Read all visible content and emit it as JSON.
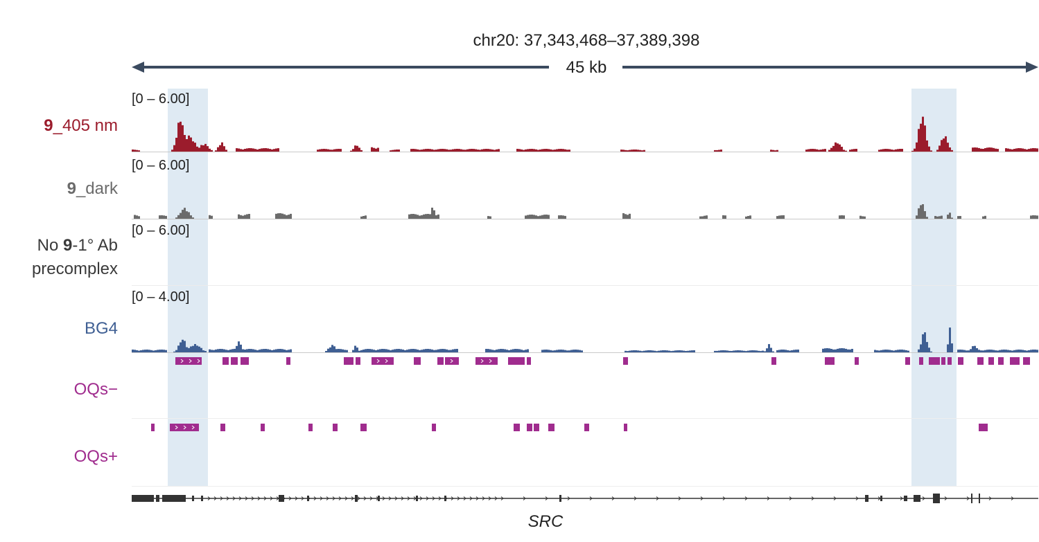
{
  "header": {
    "locus": "chr20: 37,343,468–37,389,398",
    "span": "45 kb"
  },
  "colors": {
    "red": "#9b1c2c",
    "gray": "#6b6b6b",
    "blue": "#3f5f93",
    "magenta": "#a02c8e",
    "highlight": "#dfeaf3",
    "axis": "#3b4a5f",
    "gene": "#333333"
  },
  "tracks": [
    {
      "id": "red",
      "label_bold": "9",
      "label_rest": "_405 nm",
      "range": "[0 – 6.00]",
      "color": "red"
    },
    {
      "id": "gray",
      "label_bold": "9",
      "label_rest": "_dark",
      "range": "[0 – 6.00]",
      "color": "gray"
    },
    {
      "id": "noab",
      "label_pre": "No ",
      "label_bold": "9",
      "label_rest": "-1° Ab",
      "label_line2": "precomplex",
      "range": "[0 – 6.00]",
      "color": "gray"
    },
    {
      "id": "blue",
      "label": "BG4",
      "range": "[0 – 4.00]",
      "color": "blue"
    },
    {
      "id": "oqsminus",
      "label": "OQs−",
      "color": "magenta"
    },
    {
      "id": "oqsplus",
      "label": "OQs+",
      "color": "magenta"
    }
  ],
  "gene": {
    "name": "SRC"
  }
}
